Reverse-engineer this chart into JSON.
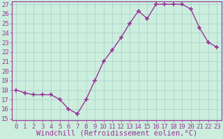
{
  "x": [
    0,
    1,
    2,
    3,
    4,
    5,
    6,
    7,
    8,
    9,
    10,
    11,
    12,
    13,
    14,
    15,
    16,
    17,
    18,
    19,
    20,
    21,
    22,
    23
  ],
  "y": [
    18.0,
    17.7,
    17.5,
    17.5,
    17.5,
    17.0,
    16.0,
    15.5,
    17.0,
    19.0,
    21.0,
    22.2,
    23.5,
    25.0,
    26.3,
    25.5,
    27.0,
    27.0,
    27.0,
    27.0,
    26.5,
    24.5,
    23.0,
    22.5
  ],
  "xlabel": "Windchill (Refroidissement éolien,°C)",
  "ylim_min": 14.8,
  "ylim_max": 27.3,
  "yticks": [
    15,
    16,
    17,
    18,
    19,
    20,
    21,
    22,
    23,
    24,
    25,
    26,
    27
  ],
  "xticks": [
    0,
    1,
    2,
    3,
    4,
    5,
    6,
    7,
    8,
    9,
    10,
    11,
    12,
    13,
    14,
    15,
    16,
    17,
    18,
    19,
    20,
    21,
    22,
    23
  ],
  "line_color": "#993399",
  "marker": "+",
  "marker_size": 5,
  "marker_lw": 1.2,
  "bg_color": "#cceedd",
  "grid_color": "#aacccc",
  "tick_label_fontsize": 6.5,
  "xlabel_fontsize": 7.5
}
